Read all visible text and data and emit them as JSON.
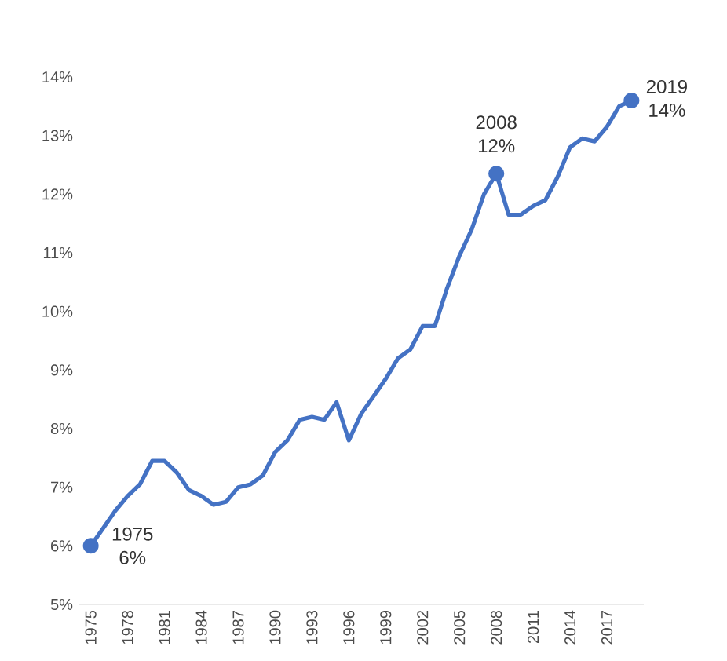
{
  "chart_data": {
    "type": "line",
    "x": [
      1975,
      1976,
      1977,
      1978,
      1979,
      1980,
      1981,
      1982,
      1983,
      1984,
      1985,
      1986,
      1987,
      1988,
      1989,
      1990,
      1991,
      1992,
      1993,
      1994,
      1995,
      1996,
      1997,
      1998,
      1999,
      2000,
      2001,
      2002,
      2003,
      2004,
      2005,
      2006,
      2007,
      2008,
      2009,
      2010,
      2011,
      2012,
      2013,
      2014,
      2015,
      2016,
      2017,
      2018,
      2019
    ],
    "series": [
      {
        "color": "#4472c4",
        "values": [
          6.0,
          6.3,
          6.6,
          6.85,
          7.05,
          7.45,
          7.45,
          7.25,
          6.95,
          6.85,
          6.7,
          6.75,
          7.0,
          7.05,
          7.2,
          7.6,
          7.8,
          8.15,
          8.2,
          8.15,
          8.45,
          7.8,
          8.25,
          8.55,
          8.85,
          9.2,
          9.35,
          9.75,
          9.75,
          10.4,
          10.95,
          11.4,
          12.0,
          12.35,
          11.65,
          11.65,
          11.8,
          11.9,
          12.3,
          12.8,
          12.95,
          12.9,
          13.15,
          13.5,
          13.6
        ]
      }
    ],
    "xlim": [
      1974,
      2020
    ],
    "xticks": [
      1975,
      1978,
      1981,
      1984,
      1987,
      1990,
      1993,
      1996,
      1999,
      2002,
      2005,
      2008,
      2011,
      2014,
      2017
    ],
    "ylim": [
      5,
      14
    ],
    "yticks": [
      {
        "value": 5,
        "label": "5%"
      },
      {
        "value": 6,
        "label": "6%"
      },
      {
        "value": 7,
        "label": "7%"
      },
      {
        "value": 8,
        "label": "8%"
      },
      {
        "value": 9,
        "label": "9%"
      },
      {
        "value": 10,
        "label": "10%"
      },
      {
        "value": 11,
        "label": "11%"
      },
      {
        "value": 12,
        "label": "12%"
      },
      {
        "value": 13,
        "label": "13%"
      },
      {
        "value": 14,
        "label": "14%"
      }
    ],
    "annotations": [
      {
        "text": "1975 6%",
        "x": 1975,
        "y": 6.0
      },
      {
        "text": "2008 12%",
        "x": 2008,
        "y": 12.35
      },
      {
        "text": "2019 14%",
        "x": 2019,
        "y": 13.6
      }
    ],
    "grid": false,
    "marker": "none",
    "line_style": "solid"
  }
}
